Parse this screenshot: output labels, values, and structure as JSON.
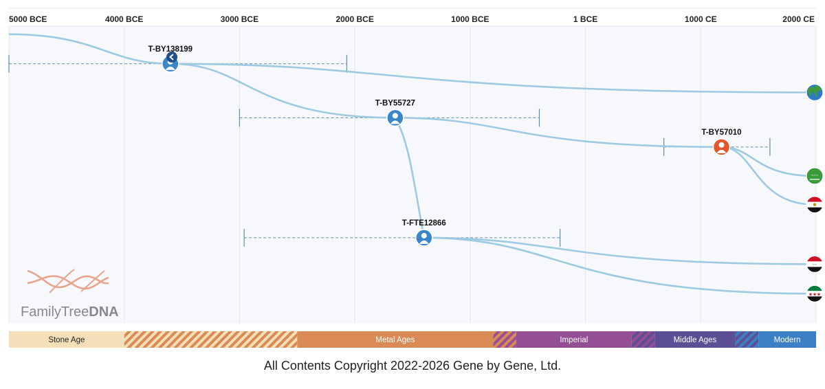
{
  "copyright": "All Contents Copyright 2022-2026 Gene by Gene, Ltd.",
  "logo": {
    "word1": "FamilyTree",
    "word2": "DNA",
    "color_primary": "#e8a48c",
    "color_text": "#888888"
  },
  "colors": {
    "line": "#9ecae1",
    "node_blue": "#3a86c8",
    "node_orange": "#e4572e",
    "back_button": "#1f4e8c",
    "grid": "#e1e6ee",
    "plot_bg": "#f6f8fc"
  },
  "chart_data": {
    "type": "timeline",
    "x_axis": {
      "range_years": [
        -5000,
        2000
      ],
      "ticks": [
        {
          "year": -5000,
          "label": "5000 BCE"
        },
        {
          "year": -4000,
          "label": "4000 BCE"
        },
        {
          "year": -3000,
          "label": "3000 BCE"
        },
        {
          "year": -2000,
          "label": "2000 BCE"
        },
        {
          "year": -1000,
          "label": "1000 BCE"
        },
        {
          "year": 0,
          "label": "1 BCE"
        },
        {
          "year": 1000,
          "label": "1000 CE"
        },
        {
          "year": 2000,
          "label": "2000 CE"
        }
      ]
    },
    "ages": [
      {
        "label": "Stone Age",
        "start": -5000,
        "end": -4000,
        "color": "#f3dfb8",
        "text_color": "#222222",
        "hatch": false
      },
      {
        "start": -4000,
        "end": -2500,
        "color": "#db8a55",
        "color2": "#f3dfb8",
        "hatch": true
      },
      {
        "label": "Metal Ages",
        "start": -2500,
        "end": -800,
        "color": "#d98a55",
        "text_color": "#ffffff",
        "hatch": false
      },
      {
        "start": -800,
        "end": -600,
        "color": "#d98a55",
        "color2": "#9b4f94",
        "hatch": true
      },
      {
        "label": "Imperial",
        "start": -600,
        "end": 400,
        "color": "#944e94",
        "text_color": "#ffffff",
        "hatch": false
      },
      {
        "start": 400,
        "end": 600,
        "color": "#944e94",
        "color2": "#5d4f94",
        "hatch": true
      },
      {
        "label": "Middle Ages",
        "start": 600,
        "end": 1300,
        "color": "#5d4f94",
        "text_color": "#ffffff",
        "hatch": false
      },
      {
        "start": 1300,
        "end": 1500,
        "color": "#5d4f94",
        "color2": "#3b7fc4",
        "hatch": true
      },
      {
        "label": "Modern",
        "start": 1500,
        "end": 2000,
        "color": "#3b7fc4",
        "text_color": "#ffffff",
        "hatch": false
      }
    ],
    "nodes": [
      {
        "id": "T-BY138199",
        "label": "T-BY138199",
        "year": -3600,
        "ci": [
          -5000,
          -2070
        ],
        "row": 0.118,
        "color": "blue"
      },
      {
        "id": "T-BY55727",
        "label": "T-BY55727",
        "year": -1650,
        "ci": [
          -3000,
          -400
        ],
        "row": 0.312,
        "color": "blue"
      },
      {
        "id": "T-BY57010",
        "label": "T-BY57010",
        "year": 1180,
        "ci": [
          680,
          1600
        ],
        "row": 0.417,
        "color": "orange"
      },
      {
        "id": "T-FTE12866",
        "label": "T-FTE12866",
        "year": -1400,
        "ci": [
          -2960,
          -220
        ],
        "row": 0.743,
        "color": "blue"
      }
    ],
    "leaves": [
      {
        "id": "world",
        "icon": "globe-icon",
        "row": 0.221
      },
      {
        "id": "saudi-arabia",
        "icon": "flag-saudi-arabia-icon",
        "row": 0.521
      },
      {
        "id": "egypt",
        "icon": "flag-egypt-icon",
        "row": 0.624
      },
      {
        "id": "iraq",
        "icon": "flag-iraq-icon",
        "row": 0.838
      },
      {
        "id": "syria",
        "icon": "flag-syria-icon",
        "row": 0.944
      }
    ],
    "links": [
      {
        "from": "origin",
        "to": "T-BY138199"
      },
      {
        "from": "T-BY138199",
        "to": "world"
      },
      {
        "from": "T-BY138199",
        "to": "T-BY55727"
      },
      {
        "from": "T-BY55727",
        "to": "T-BY57010"
      },
      {
        "from": "T-BY55727",
        "to": "T-FTE12866"
      },
      {
        "from": "T-BY57010",
        "to": "saudi-arabia"
      },
      {
        "from": "T-BY57010",
        "to": "egypt"
      },
      {
        "from": "T-FTE12866",
        "to": "iraq"
      },
      {
        "from": "T-FTE12866",
        "to": "syria"
      }
    ],
    "origin": {
      "year": -5000,
      "row": 0.012
    }
  }
}
